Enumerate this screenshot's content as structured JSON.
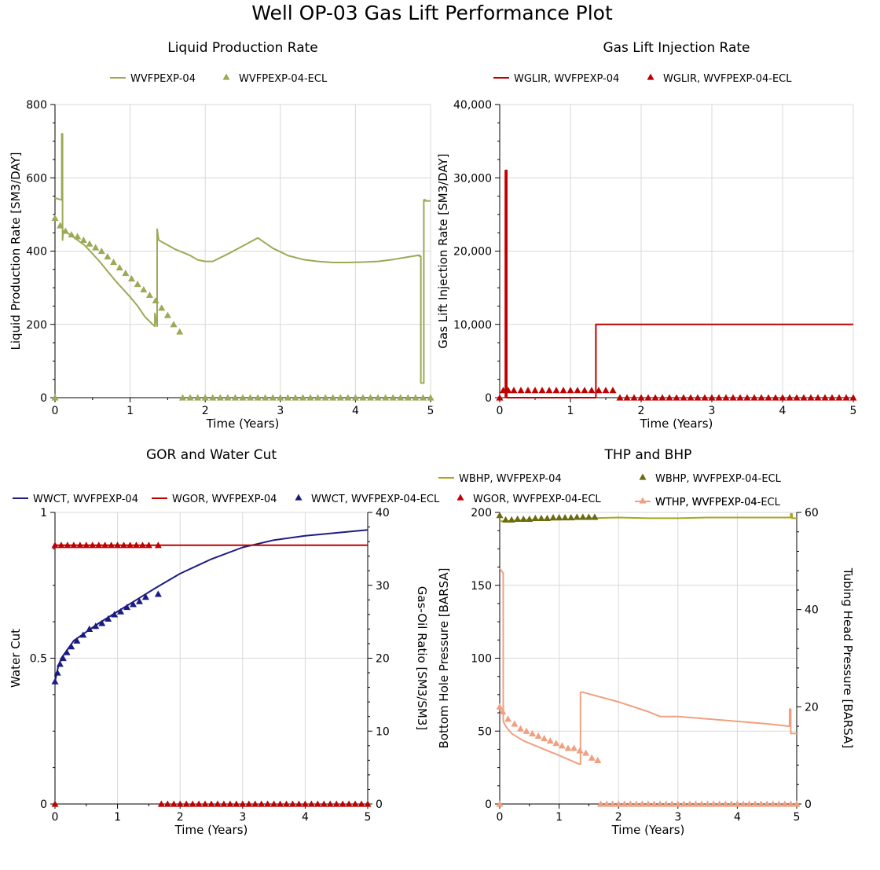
{
  "title": "Well OP-03 Gas Lift Performance Plot",
  "chart_data": [
    {
      "type": "line",
      "title": "Liquid Production Rate",
      "xlabel": "Time (Years)",
      "ylabel": "Liquid Production Rate [SM3/DAY]",
      "xlim": [
        0,
        5
      ],
      "ylim": [
        0,
        800
      ],
      "xticks": [
        0,
        1,
        2,
        3,
        4,
        5
      ],
      "yticks": [
        0,
        200,
        400,
        600,
        800
      ],
      "ytick_labels": [
        "0",
        "200",
        "400",
        "600",
        "800"
      ],
      "grid": true,
      "series": [
        {
          "name": "WVFPEXP-04",
          "style": "line",
          "color": "#9aaa55",
          "x": [
            0,
            0.08,
            0.09,
            0.09,
            0.1,
            0.1,
            0.11,
            0.2,
            0.4,
            0.6,
            0.8,
            1.0,
            1.1,
            1.2,
            1.3,
            1.33,
            1.33,
            1.36,
            1.36,
            1.38,
            1.6,
            1.8,
            1.9,
            2.0,
            2.1,
            2.3,
            2.5,
            2.7,
            2.9,
            3.1,
            3.3,
            3.5,
            3.7,
            3.9,
            4.1,
            4.3,
            4.5,
            4.7,
            4.85,
            4.85,
            4.87,
            4.87,
            4.91,
            4.91,
            4.93,
            4.93,
            5.0
          ],
          "y": [
            545,
            540,
            540,
            720,
            720,
            430,
            455,
            445,
            415,
            370,
            320,
            275,
            250,
            220,
            200,
            195,
            230,
            195,
            460,
            430,
            405,
            388,
            376,
            372,
            372,
            392,
            414,
            436,
            408,
            388,
            377,
            372,
            369,
            369,
            370,
            372,
            377,
            384,
            389,
            386,
            386,
            40,
            40,
            540,
            540,
            537,
            537
          ]
        },
        {
          "name": "WVFPEXP-04-ECL",
          "style": "marker",
          "color": "#9aaa55",
          "x": [
            0,
            0,
            0.07,
            0.14,
            0.22,
            0.3,
            0.38,
            0.46,
            0.54,
            0.62,
            0.7,
            0.78,
            0.86,
            0.94,
            1.02,
            1.1,
            1.18,
            1.26,
            1.34,
            1.42,
            1.5,
            1.58,
            1.66,
            1.7,
            1.8,
            1.9,
            2.0,
            2.1,
            2.2,
            2.3,
            2.4,
            2.5,
            2.6,
            2.7,
            2.8,
            2.9,
            3.0,
            3.1,
            3.2,
            3.3,
            3.4,
            3.5,
            3.6,
            3.7,
            3.8,
            3.9,
            4.0,
            4.1,
            4.2,
            4.3,
            4.4,
            4.5,
            4.6,
            4.7,
            4.8,
            4.9,
            5.0
          ],
          "y": [
            0,
            490,
            470,
            455,
            445,
            440,
            430,
            420,
            410,
            400,
            385,
            370,
            355,
            340,
            325,
            310,
            295,
            280,
            265,
            245,
            225,
            200,
            180,
            0,
            0,
            0,
            0,
            0,
            0,
            0,
            0,
            0,
            0,
            0,
            0,
            0,
            0,
            0,
            0,
            0,
            0,
            0,
            0,
            0,
            0,
            0,
            0,
            0,
            0,
            0,
            0,
            0,
            0,
            0,
            0,
            0,
            0
          ]
        }
      ],
      "legend_position": "top"
    },
    {
      "type": "line",
      "title": "Gas Lift Injection Rate",
      "xlabel": "Time (Years)",
      "ylabel": "Gas Lift Injection Rate [SM3/DAY]",
      "xlim": [
        0,
        5
      ],
      "ylim": [
        0,
        40000
      ],
      "xticks": [
        0,
        1,
        2,
        3,
        4,
        5
      ],
      "yticks": [
        0,
        10000,
        20000,
        30000,
        40000
      ],
      "ytick_labels": [
        "0",
        "10,000",
        "20,000",
        "30,000",
        "40,000"
      ],
      "grid": true,
      "series": [
        {
          "name": "WGLIR, WVFPEXP-04",
          "style": "line",
          "color": "#c00000",
          "x": [
            0.08,
            0.08,
            0.1,
            0.1,
            1.36,
            1.36,
            5.0
          ],
          "y": [
            0,
            31000,
            31000,
            0,
            0,
            10000,
            10000
          ]
        },
        {
          "name": "WGLIR, WVFPEXP-04-ECL",
          "style": "marker",
          "color": "#c00000",
          "x": [
            0,
            0.05,
            0.12,
            0.2,
            0.3,
            0.4,
            0.5,
            0.6,
            0.7,
            0.8,
            0.9,
            1.0,
            1.1,
            1.2,
            1.3,
            1.4,
            1.5,
            1.6,
            1.7,
            1.8,
            1.9,
            2.0,
            2.1,
            2.2,
            2.3,
            2.4,
            2.5,
            2.6,
            2.7,
            2.8,
            2.9,
            3.0,
            3.1,
            3.2,
            3.3,
            3.4,
            3.5,
            3.6,
            3.7,
            3.8,
            3.9,
            4.0,
            4.1,
            4.2,
            4.3,
            4.4,
            4.5,
            4.6,
            4.7,
            4.8,
            4.9,
            5.0
          ],
          "y": [
            0,
            1000,
            1000,
            1000,
            1000,
            1000,
            1000,
            1000,
            1000,
            1000,
            1000,
            1000,
            1000,
            1000,
            1000,
            1000,
            1000,
            1000,
            0,
            0,
            0,
            0,
            0,
            0,
            0,
            0,
            0,
            0,
            0,
            0,
            0,
            0,
            0,
            0,
            0,
            0,
            0,
            0,
            0,
            0,
            0,
            0,
            0,
            0,
            0,
            0,
            0,
            0,
            0,
            0,
            0,
            0
          ]
        }
      ],
      "legend_position": "top"
    },
    {
      "type": "line",
      "title": "GOR and Water Cut",
      "xlabel": "Time (Years)",
      "ylabel": "Water Cut",
      "y2label": "Gas-Oil Ratio [SM3/SM3]",
      "xlim": [
        0,
        5
      ],
      "ylim": [
        0,
        1
      ],
      "y2lim": [
        0,
        40
      ],
      "xticks": [
        0,
        1,
        2,
        3,
        4,
        5
      ],
      "yticks": [
        0,
        0.5,
        1
      ],
      "ytick_labels": [
        "0",
        "0.5",
        "1"
      ],
      "y2ticks": [
        0,
        10,
        20,
        30,
        40
      ],
      "y2tick_labels": [
        "0",
        "10",
        "20",
        "30",
        "40"
      ],
      "grid": true,
      "series": [
        {
          "name": "WWCT, WVFPEXP-04",
          "style": "line",
          "color": "#1c1c80",
          "axis": "left",
          "x": [
            0,
            0.05,
            0.1,
            0.2,
            0.3,
            0.5,
            0.7,
            1.0,
            1.3,
            1.6,
            2.0,
            2.5,
            3.0,
            3.5,
            4.0,
            4.5,
            5.0
          ],
          "y": [
            0.42,
            0.47,
            0.5,
            0.53,
            0.56,
            0.59,
            0.62,
            0.66,
            0.7,
            0.74,
            0.79,
            0.84,
            0.88,
            0.905,
            0.92,
            0.93,
            0.94
          ]
        },
        {
          "name": "WGOR, WVFPEXP-04",
          "style": "line",
          "color": "#c00000",
          "axis": "right",
          "x": [
            0,
            5
          ],
          "y": [
            35.5,
            35.5
          ]
        },
        {
          "name": "WWCT, WVFPEXP-04-ECL",
          "style": "marker",
          "color": "#1c1c80",
          "axis": "left",
          "x": [
            0,
            0.04,
            0.08,
            0.13,
            0.19,
            0.26,
            0.35,
            0.45,
            0.55,
            0.65,
            0.75,
            0.85,
            0.95,
            1.05,
            1.15,
            1.25,
            1.35,
            1.45,
            1.65
          ],
          "y": [
            0.42,
            0.45,
            0.48,
            0.5,
            0.52,
            0.54,
            0.56,
            0.58,
            0.6,
            0.61,
            0.62,
            0.635,
            0.65,
            0.66,
            0.675,
            0.685,
            0.695,
            0.71,
            0.72
          ]
        },
        {
          "name": "WGOR, WVFPEXP-04-ECL",
          "style": "marker",
          "color": "#c00000",
          "axis": "right",
          "x": [
            0,
            0,
            0.1,
            0.2,
            0.3,
            0.4,
            0.5,
            0.6,
            0.7,
            0.8,
            0.9,
            1.0,
            1.1,
            1.2,
            1.3,
            1.4,
            1.5,
            1.65,
            1.7,
            1.8,
            1.9,
            2.0,
            2.1,
            2.2,
            2.3,
            2.4,
            2.5,
            2.6,
            2.7,
            2.8,
            2.9,
            3.0,
            3.1,
            3.2,
            3.3,
            3.4,
            3.5,
            3.6,
            3.7,
            3.8,
            3.9,
            4.0,
            4.1,
            4.2,
            4.3,
            4.4,
            4.5,
            4.6,
            4.7,
            4.8,
            4.9,
            5.0
          ],
          "y": [
            0,
            35.5,
            35.5,
            35.5,
            35.5,
            35.5,
            35.5,
            35.5,
            35.5,
            35.5,
            35.5,
            35.5,
            35.5,
            35.5,
            35.5,
            35.5,
            35.5,
            35.5,
            0,
            0,
            0,
            0,
            0,
            0,
            0,
            0,
            0,
            0,
            0,
            0,
            0,
            0,
            0,
            0,
            0,
            0,
            0,
            0,
            0,
            0,
            0,
            0,
            0,
            0,
            0,
            0,
            0,
            0,
            0,
            0,
            0,
            0
          ]
        }
      ],
      "legend_position": "top"
    },
    {
      "type": "line",
      "title": "THP and BHP",
      "xlabel": "Time (Years)",
      "ylabel": "Bottom Hole Pressure [BARSA]",
      "y2label": "Tubing Head Pressure [BARSA]",
      "xlim": [
        0,
        5
      ],
      "ylim": [
        0,
        200
      ],
      "y2lim": [
        0,
        60
      ],
      "xticks": [
        0,
        1,
        2,
        3,
        4,
        5
      ],
      "yticks": [
        0,
        50,
        100,
        150,
        200
      ],
      "ytick_labels": [
        "0",
        "50",
        "100",
        "150",
        "200"
      ],
      "y2ticks": [
        0,
        20,
        40,
        60
      ],
      "y2tick_labels": [
        "0",
        "20",
        "40",
        "60"
      ],
      "grid": true,
      "series": [
        {
          "name": "WBHP, WVFPEXP-04",
          "style": "line",
          "color": "#a8a820",
          "axis": "left",
          "x": [
            0,
            0.05,
            0.5,
            1.0,
            1.5,
            2.0,
            2.5,
            3.0,
            3.5,
            4.0,
            4.5,
            4.9,
            4.9,
            4.92,
            4.92,
            5.0
          ],
          "y": [
            194,
            194,
            195,
            195,
            196,
            196.5,
            196,
            196,
            196.5,
            196.5,
            196.5,
            196.5,
            199,
            199,
            196,
            196
          ]
        },
        {
          "name": "WBHP, WVFPEXP-04-ECL",
          "style": "marker",
          "color": "#6a6a10",
          "axis": "left",
          "x": [
            0,
            0.1,
            0.2,
            0.3,
            0.4,
            0.5,
            0.6,
            0.7,
            0.8,
            0.9,
            1.0,
            1.1,
            1.2,
            1.3,
            1.4,
            1.5,
            1.6
          ],
          "y": [
            198,
            195,
            195,
            195.5,
            195.5,
            195.5,
            196,
            196,
            196,
            196.5,
            196.5,
            196.5,
            196.5,
            196.8,
            196.8,
            196.8,
            196.8
          ]
        },
        {
          "name": "WTHP, WVFPEXP-04",
          "style": "line",
          "color": "#f0a080",
          "axis": "right",
          "x": [
            0,
            0.06,
            0.06,
            0.1,
            0.2,
            0.4,
            0.7,
            1.0,
            1.34,
            1.36,
            1.36,
            1.4,
            2.0,
            2.5,
            2.7,
            3.0,
            3.5,
            4.0,
            4.5,
            4.88,
            4.88,
            4.9,
            4.9,
            5.0
          ],
          "y": [
            48.5,
            47.5,
            17,
            16,
            14.5,
            13,
            11.5,
            10,
            8.2,
            8.2,
            23,
            23,
            21,
            19,
            18,
            18,
            17.5,
            17,
            16.5,
            16,
            19.5,
            19.5,
            14.5,
            14.5
          ]
        },
        {
          "name": "WTHP, WVFPEXP-04-ECL",
          "style": "marker",
          "color": "#f0a080",
          "axis": "right",
          "x": [
            0,
            0,
            0.05,
            0.14,
            0.25,
            0.35,
            0.45,
            0.55,
            0.65,
            0.75,
            0.85,
            0.95,
            1.05,
            1.15,
            1.25,
            1.35,
            1.45,
            1.55,
            1.65,
            1.7,
            1.8,
            1.9,
            2.0,
            2.1,
            2.2,
            2.3,
            2.4,
            2.5,
            2.6,
            2.7,
            2.8,
            2.9,
            3.0,
            3.1,
            3.2,
            3.3,
            3.4,
            3.5,
            3.6,
            3.7,
            3.8,
            3.9,
            4.0,
            4.1,
            4.2,
            4.3,
            4.4,
            4.5,
            4.6,
            4.7,
            4.8,
            4.9,
            5.0
          ],
          "y": [
            0,
            20,
            19,
            17.5,
            16.5,
            15.5,
            15,
            14.5,
            14,
            13.5,
            13,
            12.5,
            12,
            11.5,
            11.5,
            11,
            10.5,
            9.5,
            9,
            0,
            0,
            0,
            0,
            0,
            0,
            0,
            0,
            0,
            0,
            0,
            0,
            0,
            0,
            0,
            0,
            0,
            0,
            0,
            0,
            0,
            0,
            0,
            0,
            0,
            0,
            0,
            0,
            0,
            0,
            0,
            0,
            0,
            0
          ]
        }
      ],
      "legend_position": "top"
    }
  ]
}
